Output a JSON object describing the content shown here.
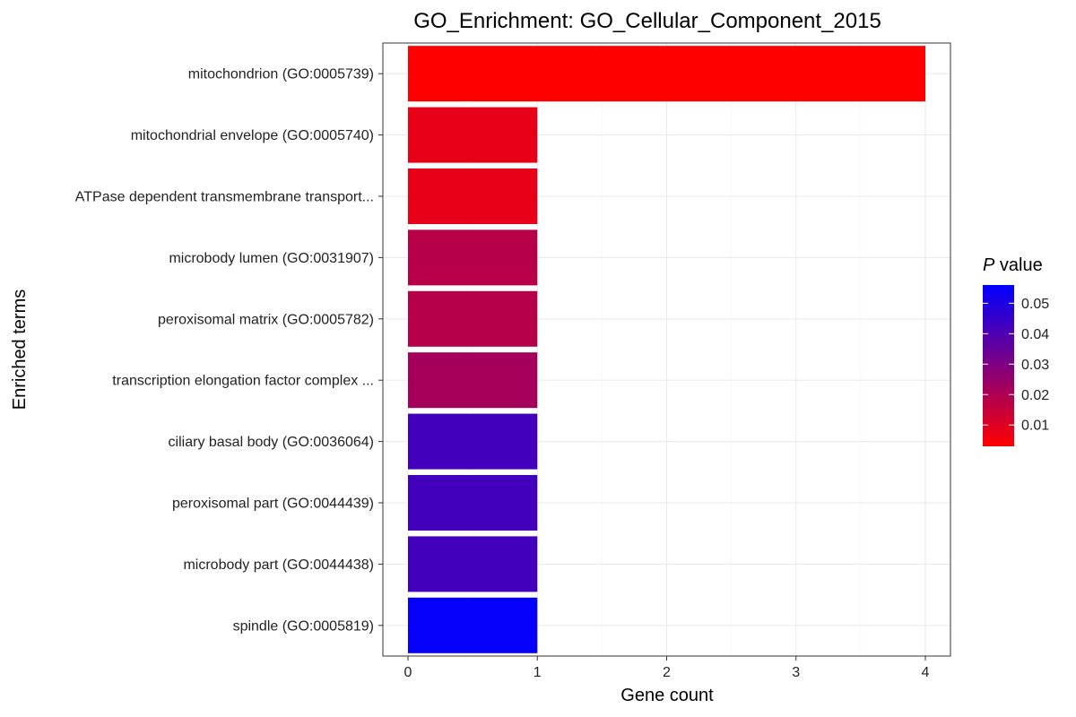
{
  "chart_data": {
    "type": "bar",
    "orientation": "horizontal",
    "title": "GO_Enrichment: GO_Cellular_Component_2015",
    "xlabel": "Gene count",
    "ylabel": "Enriched terms",
    "xlim": [
      0,
      4.2
    ],
    "x_ticks": [
      0,
      1,
      2,
      3,
      4
    ],
    "x_tick_labels": [
      "0",
      "1",
      "2",
      "3",
      "4"
    ],
    "grid": true,
    "categories": [
      "mitochondrion (GO:0005739)",
      "mitochondrial envelope (GO:0005740)",
      "ATPase dependent transmembrane transport...",
      "microbody lumen (GO:0031907)",
      "peroxisomal matrix (GO:0005782)",
      "transcription elongation factor complex ...",
      "ciliary basal body (GO:0036064)",
      "peroxisomal part (GO:0044439)",
      "microbody part (GO:0044438)",
      "spindle (GO:0005819)"
    ],
    "values": [
      4,
      1,
      1,
      1,
      1,
      1,
      1,
      1,
      1,
      1
    ],
    "p_values": [
      0.003,
      0.008,
      0.008,
      0.018,
      0.018,
      0.022,
      0.042,
      0.042,
      0.042,
      0.055
    ],
    "legend": {
      "title_italic": "P",
      "title_rest": " value",
      "placement": "right",
      "type": "colorbar",
      "range": [
        0.003,
        0.056
      ],
      "ticks": [
        0.01,
        0.02,
        0.03,
        0.04,
        0.05
      ],
      "tick_labels": [
        "0.01",
        "0.02",
        "0.03",
        "0.04",
        "0.05"
      ],
      "low_color": "#FF0000",
      "high_color": "#0000FF"
    }
  }
}
